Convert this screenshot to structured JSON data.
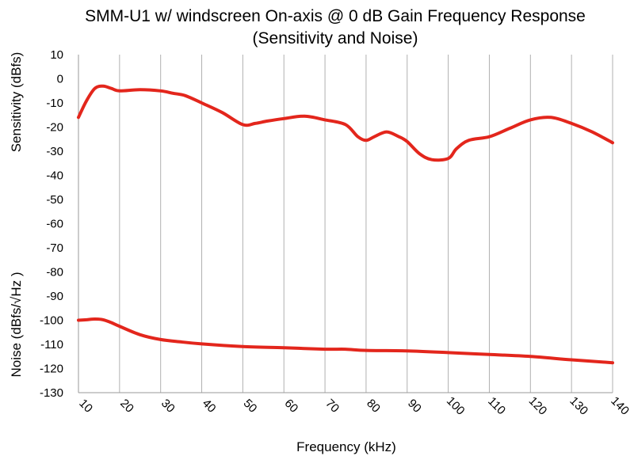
{
  "chart_data": {
    "type": "line",
    "title": "SMM-U1 w/ windscreen On-axis @ 0 dB Gain Frequency Response",
    "subtitle": "(Sensitivity and Noise)",
    "xlabel": "Frequency (kHz)",
    "ylabel_upper": "Sensitivity (dBfs)",
    "ylabel_lower": "Noise (dBfs/√Hz )",
    "xlim": [
      10,
      140
    ],
    "ylim": [
      -130,
      10
    ],
    "xticks": [
      10,
      20,
      30,
      40,
      50,
      60,
      70,
      80,
      90,
      100,
      110,
      120,
      130,
      140
    ],
    "yticks": [
      10,
      0,
      -10,
      -20,
      -30,
      -40,
      -50,
      -60,
      -70,
      -80,
      -90,
      -100,
      -110,
      -120,
      -130
    ],
    "grid": "vertical",
    "colors": {
      "series": "#e3261c"
    },
    "series": [
      {
        "x": [
          10,
          12,
          14,
          16,
          18,
          20,
          25,
          30,
          33,
          36,
          40,
          45,
          50,
          53,
          56,
          60,
          65,
          70,
          75,
          78,
          80,
          82,
          85,
          88,
          90,
          93,
          96,
          100,
          102,
          105,
          110,
          115,
          120,
          125,
          130,
          135,
          140
        ],
        "values": [
          -16,
          -9,
          -4,
          -3,
          -4,
          -5,
          -4.5,
          -5,
          -6,
          -7,
          -10,
          -14,
          -19,
          -18.5,
          -17.5,
          -16.5,
          -15.5,
          -17,
          -19,
          -24,
          -25.5,
          -24,
          -22,
          -24,
          -26,
          -31,
          -33.5,
          -33,
          -29,
          -25.5,
          -24,
          -20.5,
          -17,
          -16,
          -18.5,
          -22,
          -26.5
        ]
      },
      {
        "x": [
          10,
          12,
          14,
          16,
          18,
          20,
          25,
          30,
          35,
          40,
          50,
          60,
          70,
          75,
          80,
          90,
          100,
          110,
          120,
          130,
          140
        ],
        "values": [
          -100,
          -99.8,
          -99.5,
          -99.8,
          -101,
          -102.5,
          -106,
          -108,
          -109,
          -109.8,
          -110.9,
          -111.4,
          -112,
          -112,
          -112.5,
          -112.7,
          -113.4,
          -114.2,
          -115,
          -116.4,
          -117.6
        ]
      }
    ]
  }
}
